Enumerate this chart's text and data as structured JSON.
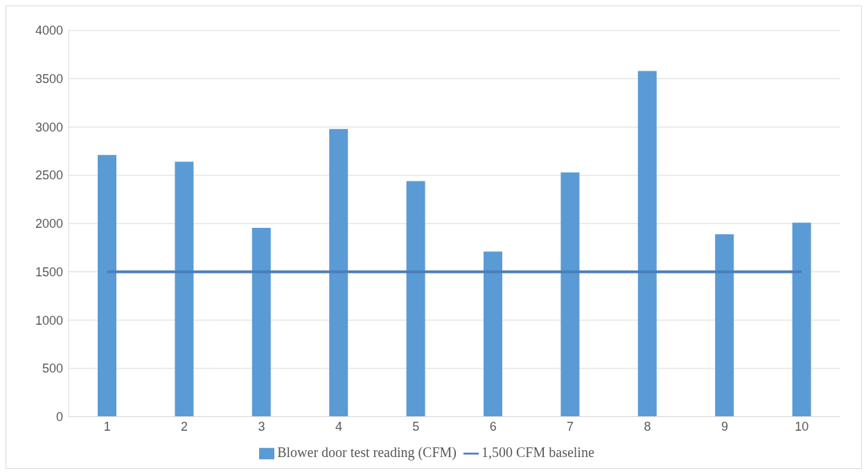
{
  "chart_data": {
    "type": "bar",
    "categories": [
      "1",
      "2",
      "3",
      "4",
      "5",
      "6",
      "7",
      "8",
      "9",
      "10"
    ],
    "series": [
      {
        "name": "Blower door test reading (CFM)",
        "color": "#5b9bd5",
        "values": [
          2710,
          2640,
          1955,
          2980,
          2440,
          1710,
          2530,
          3580,
          1890,
          2010
        ]
      },
      {
        "name": "1,500 CFM baseline",
        "type": "line",
        "color": "#4a7ebb",
        "values": [
          1500,
          1500,
          1500,
          1500,
          1500,
          1500,
          1500,
          1500,
          1500,
          1500
        ],
        "marker": "none"
      }
    ],
    "ylim": [
      0,
      4000
    ],
    "yticks": [
      0,
      500,
      1000,
      1500,
      2000,
      2500,
      3000,
      3500,
      4000
    ],
    "grid": "y",
    "legend": "bottom"
  }
}
